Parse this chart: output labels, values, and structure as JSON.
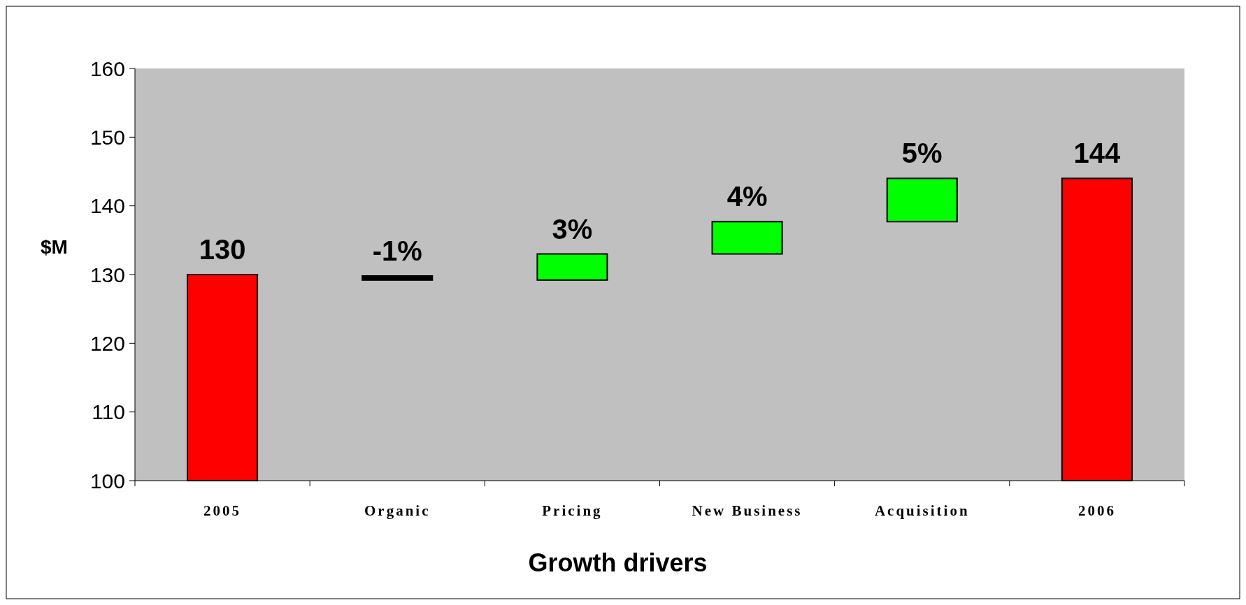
{
  "chart_data": {
    "type": "bar",
    "xlabel": "Growth drivers",
    "ylabel": "$M",
    "categories": [
      "2005",
      "Organic",
      "Pricing",
      "New Business",
      "Acquisition",
      "2006"
    ],
    "values": [
      30,
      -0.6,
      3.8,
      4.7,
      6.3,
      44
    ],
    "base": [
      100,
      129.8,
      129.2,
      133,
      137.7,
      100
    ],
    "colors": [
      "#ff0000",
      "#000000",
      "#00ff00",
      "#00ff00",
      "#00ff00",
      "#ff0000"
    ],
    "annotations": [
      {
        "text": "130",
        "x": "2005",
        "y": 130
      },
      {
        "text": "-1%",
        "x": "Organic",
        "y": 129.8
      },
      {
        "text": "3%",
        "x": "Pricing",
        "y": 133
      },
      {
        "text": "4%",
        "x": "New Business",
        "y": 137.7
      },
      {
        "text": "5%",
        "x": "Acquisition",
        "y": 144
      },
      {
        "text": "144",
        "x": "2006",
        "y": 144
      }
    ],
    "ylim": [
      100,
      160
    ],
    "yticks": [
      100,
      110,
      120,
      130,
      140,
      150,
      160
    ],
    "grid": false
  }
}
